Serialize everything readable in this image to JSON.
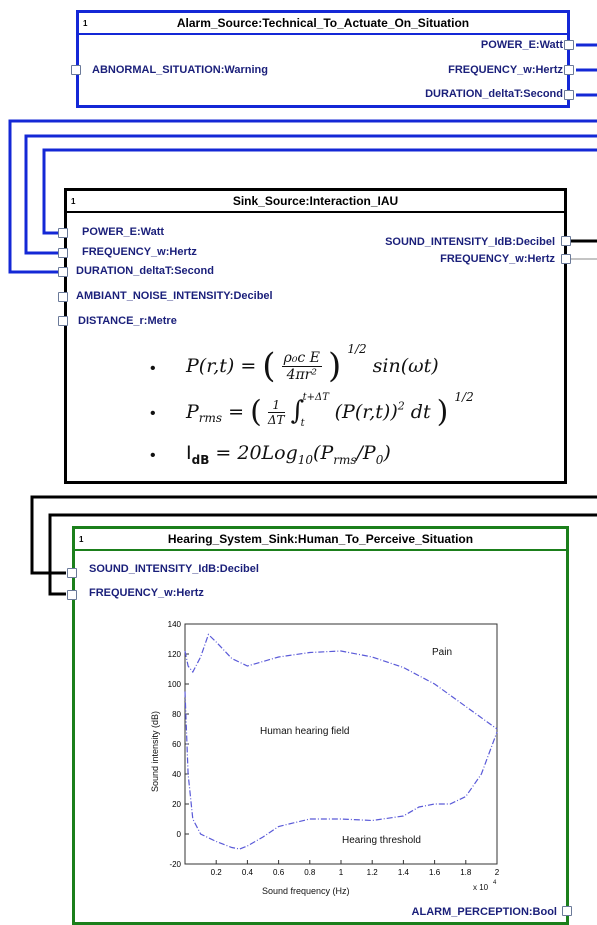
{
  "blocks": {
    "alarm": {
      "index": "1",
      "title": "Alarm_Source:Technical_To_Actuate_On_Situation",
      "inputs": [
        "ABNORMAL_SITUATION:Warning"
      ],
      "outputs": [
        "POWER_E:Watt",
        "FREQUENCY_w:Hertz",
        "DURATION_deltaT:Second"
      ],
      "color": "#1428d6"
    },
    "sink": {
      "index": "1",
      "title": "Sink_Source:Interaction_IAU",
      "inputs": [
        "POWER_E:Watt",
        "FREQUENCY_w:Hertz",
        "DURATION_deltaT:Second",
        "AMBIANT_NOISE_INTENSITY:Decibel",
        "DISTANCE_r:Metre"
      ],
      "outputs": [
        "SOUND_INTENSITY_IdB:Decibel",
        "FREQUENCY_w:Hertz"
      ],
      "color": "#000000",
      "formulas": {
        "f1_lhs": "P(r,t) = ",
        "f1_num": "ρ₀c E",
        "f1_den": "4πr²",
        "f1_exp": "1/2",
        "f1_rhs": "sin(ωt)",
        "f2_lhs": "P",
        "f2_sub": "rms",
        "f2_mid": " = ",
        "f2_frac_num": "1",
        "f2_frac_den": "ΔT",
        "f2_int_lo": "t",
        "f2_int_hi": "t+ΔT",
        "f2_body": "(P(r,t))",
        "f2_sq": "2",
        "f2_dt": "dt",
        "f2_exp": "1/2",
        "f3_lhs": "I",
        "f3_sub": "dB",
        "f3_rhs": " = 20Log",
        "f3_log_sub": "10",
        "f3_arg1": "(P",
        "f3_arg_sub1": "rms",
        "f3_arg2": "/P",
        "f3_arg_sub2": "0",
        "f3_close": ")",
        "bullet": "•"
      }
    },
    "hearing": {
      "index": "1",
      "title": "Hearing_System_Sink:Human_To_Perceive_Situation",
      "inputs": [
        "SOUND_INTENSITY_IdB:Decibel",
        "FREQUENCY_w:Hertz"
      ],
      "outputs": [
        "ALARM_PERCEPTION:Bool"
      ],
      "color": "#1b7f1b"
    }
  },
  "chart_data": {
    "type": "line",
    "xlabel": "Sound frequency (Hz)",
    "ylabel": "Sound intensity (dB)",
    "x_multiplier_label": "x 10",
    "x_multiplier_exp": "4",
    "xlim": [
      0,
      2
    ],
    "ylim": [
      -20,
      140
    ],
    "xticks": [
      "0.2",
      "0.4",
      "0.6",
      "0.8",
      "1",
      "1.2",
      "1.4",
      "1.6",
      "1.8",
      "2"
    ],
    "yticks": [
      "140",
      "120",
      "100",
      "80",
      "60",
      "40",
      "20",
      "0",
      "-20"
    ],
    "annotations": [
      "Pain",
      "Human hearing field",
      "Hearing threshold"
    ],
    "series": [
      {
        "color": "#5a5ad8",
        "style": "dash-dot",
        "x": [
          0,
          0.02,
          0.05,
          0.1,
          0.15,
          0.2,
          0.3,
          0.4,
          0.6,
          0.8,
          1.0,
          1.2,
          1.4,
          1.6,
          1.8,
          2.0
        ],
        "y": [
          122,
          112,
          108,
          118,
          133,
          128,
          117,
          112,
          118,
          121,
          122,
          118,
          111,
          100,
          85,
          70
        ]
      },
      {
        "color": "#5a5ad8",
        "style": "dash-dot",
        "x": [
          0,
          0.02,
          0.05,
          0.1,
          0.2,
          0.3,
          0.35,
          0.4,
          0.5,
          0.6,
          0.8,
          1.0,
          1.2,
          1.4,
          1.5,
          1.6,
          1.7,
          1.8,
          1.9,
          2.0
        ],
        "y": [
          95,
          40,
          10,
          0,
          -5,
          -9,
          -10,
          -8,
          -2,
          5,
          10,
          10,
          9,
          12,
          18,
          20,
          20,
          25,
          40,
          68
        ]
      }
    ]
  }
}
